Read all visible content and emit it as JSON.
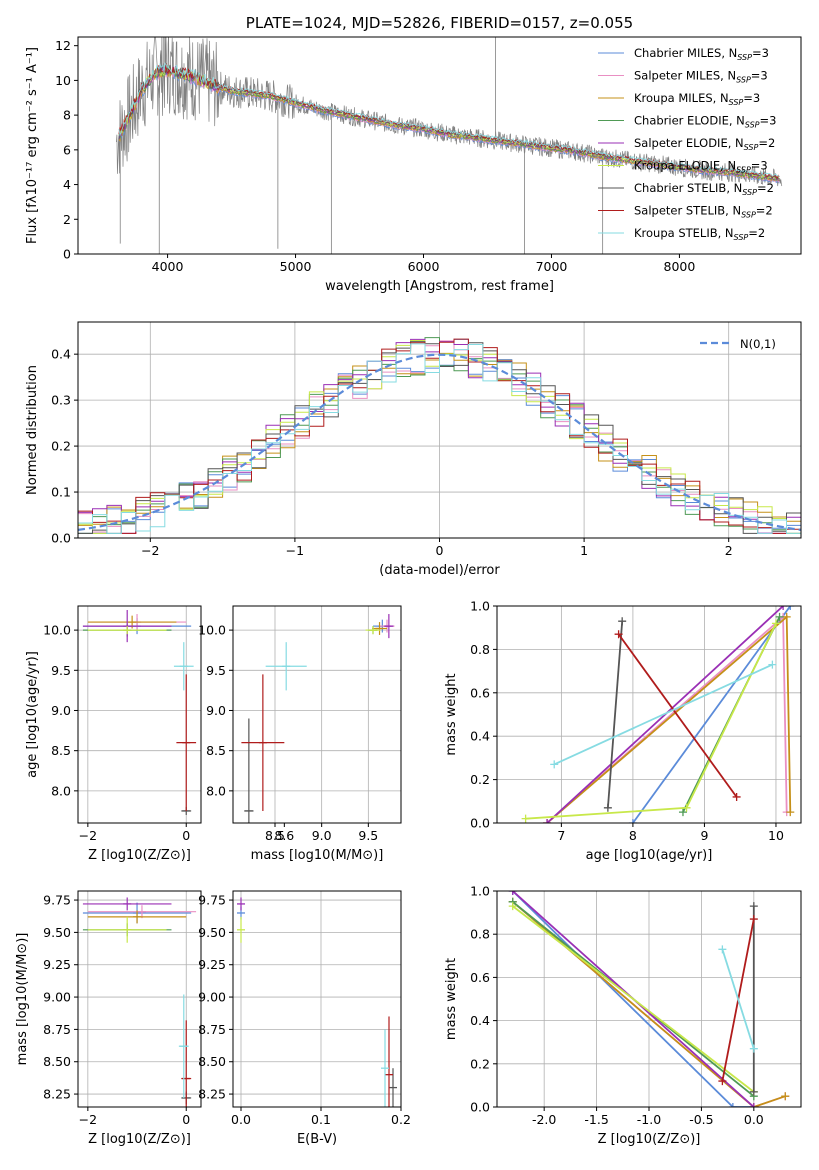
{
  "colors": {
    "Chabrier MILES": "#5b8bd9",
    "Salpeter MILES": "#e98fc3",
    "Kroupa MILES": "#c59018",
    "Chabrier ELODIE": "#4f9a55",
    "Salpeter ELODIE": "#9a2fb5",
    "Kroupa ELODIE": "#c8e84a",
    "Chabrier STELIB": "#555555",
    "Salpeter STELIB": "#b01c1c",
    "Kroupa STELIB": "#86dbe2",
    "spectrum": "#808080",
    "normal": "#5b8bd9"
  },
  "chart_data": [
    {
      "type": "line",
      "title": "PLATE=1024, MJD=52826, FIBERID=0157, z=0.055",
      "xlabel": "wavelength [Angstrom, rest frame]",
      "ylabel": "Flux [fλ10⁻¹⁷ erg cm⁻² s⁻¹ A⁻¹]",
      "xlim": [
        3300,
        8950
      ],
      "ylim": [
        0,
        12.5
      ],
      "xticks": [
        4000,
        5000,
        6000,
        7000,
        8000
      ],
      "yticks": [
        0,
        2,
        4,
        6,
        8,
        10,
        12
      ],
      "grid": false,
      "legend": "top-right",
      "observed_x": [
        3600,
        3700,
        3800,
        3900,
        4000,
        4100,
        4200,
        4300,
        4400,
        4500,
        4600,
        4700,
        4800,
        4900,
        5000,
        5200,
        5400,
        5600,
        5800,
        6000,
        6200,
        6400,
        6600,
        6800,
        7000,
        7200,
        7400,
        7600,
        7800,
        8000,
        8200,
        8400,
        8600,
        8800
      ],
      "observed_y": [
        6.5,
        7.9,
        9.5,
        10.4,
        10.6,
        10.4,
        10.2,
        9.9,
        9.6,
        9.4,
        9.3,
        9.2,
        9.1,
        8.9,
        8.7,
        8.3,
        8.0,
        7.7,
        7.4,
        7.2,
        6.9,
        6.7,
        6.5,
        6.3,
        6.1,
        5.9,
        5.6,
        5.4,
        5.2,
        5.0,
        4.8,
        4.7,
        4.5,
        4.3
      ],
      "series": [
        {
          "name": "Chabrier MILES, N_SSP=3"
        },
        {
          "name": "Salpeter MILES, N_SSP=3"
        },
        {
          "name": "Kroupa MILES, N_SSP=3"
        },
        {
          "name": "Chabrier ELODIE, N_SSP=3"
        },
        {
          "name": "Salpeter ELODIE, N_SSP=2"
        },
        {
          "name": "Kroupa ELODIE, N_SSP=3"
        },
        {
          "name": "Chabrier STELIB, N_SSP=2"
        },
        {
          "name": "Salpeter STELIB, N_SSP=2"
        },
        {
          "name": "Kroupa STELIB, N_SSP=2"
        }
      ]
    },
    {
      "type": "histogram",
      "xlabel": "(data-model)/error",
      "ylabel": "Normed distribution",
      "xlim": [
        -2.5,
        2.5
      ],
      "ylim": [
        0,
        0.47
      ],
      "xticks": [
        -2,
        -1,
        0,
        1,
        2
      ],
      "yticks": [
        0.0,
        0.1,
        0.2,
        0.3,
        0.4
      ],
      "grid": true,
      "legend": "top-right",
      "legend_label": "N(0,1)",
      "bin_width": 0.1
    },
    {
      "type": "scatter",
      "xlabel": "Z [log10(Z/Z⊙)]",
      "ylabel": "age  [log10(age/yr)]",
      "xlim": [
        -2.2,
        0.3
      ],
      "ylim": [
        7.6,
        10.3
      ],
      "xticks": [
        -2,
        0
      ],
      "yticks": [
        8.0,
        8.5,
        9.0,
        9.5,
        10.0
      ],
      "grid": true,
      "points": [
        {
          "series": "Chabrier MILES",
          "x": -1.0,
          "y": 10.05,
          "xerr": 1.1,
          "yerr": 0.1
        },
        {
          "series": "Salpeter MILES",
          "x": -1.0,
          "y": 10.1,
          "xerr": 1.0,
          "yerr": 0.1
        },
        {
          "series": "Kroupa MILES",
          "x": -1.1,
          "y": 10.1,
          "xerr": 0.9,
          "yerr": 0.08
        },
        {
          "series": "Chabrier ELODIE",
          "x": -1.2,
          "y": 10.0,
          "xerr": 0.9,
          "yerr": 0.08
        },
        {
          "series": "Salpeter ELODIE",
          "x": -1.2,
          "y": 10.05,
          "xerr": 0.9,
          "yerr": 0.2
        },
        {
          "series": "Kroupa ELODIE",
          "x": -1.2,
          "y": 10.0,
          "xerr": 0.8,
          "yerr": 0.05
        },
        {
          "series": "Chabrier STELIB",
          "x": 0.0,
          "y": 7.75,
          "xerr": 0.1,
          "yerr": 0.05
        },
        {
          "series": "Salpeter STELIB",
          "x": 0.0,
          "y": 8.6,
          "xerr": 0.2,
          "yerr": 0.85
        },
        {
          "series": "Kroupa STELIB",
          "x": -0.05,
          "y": 9.55,
          "xerr": 0.2,
          "yerr": 0.3
        }
      ]
    },
    {
      "type": "scatter",
      "xlabel": "mass [log10(M/M⊙)]",
      "ylabel": "",
      "xlim": [
        8.05,
        9.85
      ],
      "ylim": [
        7.6,
        10.3
      ],
      "xticks": [
        8.5,
        9.0,
        9.5
      ],
      "xtick_labels": [
        "8.5",
        "9.0",
        "9.5"
      ],
      "yticks": [
        8.0,
        8.5,
        9.0,
        9.5,
        10.0
      ],
      "grid": true,
      "extra_xtick": {
        "value": 8.6,
        "label": "8.6"
      },
      "points": [
        {
          "series": "Chabrier MILES",
          "x": 9.65,
          "y": 10.05,
          "xerr": 0.1,
          "yerr": 0.08
        },
        {
          "series": "Salpeter MILES",
          "x": 9.7,
          "y": 10.05,
          "xerr": 0.08,
          "yerr": 0.08
        },
        {
          "series": "Kroupa MILES",
          "x": 9.62,
          "y": 10.02,
          "xerr": 0.08,
          "yerr": 0.08
        },
        {
          "series": "Chabrier ELODIE",
          "x": 9.55,
          "y": 10.0,
          "xerr": 0.05,
          "yerr": 0.05
        },
        {
          "series": "Salpeter ELODIE",
          "x": 9.72,
          "y": 10.05,
          "xerr": 0.05,
          "yerr": 0.15
        },
        {
          "series": "Kroupa ELODIE",
          "x": 9.55,
          "y": 10.0,
          "xerr": 0.08,
          "yerr": 0.05
        },
        {
          "series": "Chabrier STELIB",
          "x": 8.22,
          "y": 7.75,
          "xerr": 0.05,
          "yerr": 1.15
        },
        {
          "series": "Salpeter STELIB",
          "x": 8.37,
          "y": 8.6,
          "xerr": 0.23,
          "yerr": 0.85
        },
        {
          "series": "Kroupa STELIB",
          "x": 8.62,
          "y": 9.55,
          "xerr": 0.22,
          "yerr": 0.3
        }
      ]
    },
    {
      "type": "line",
      "xlabel": "age  [log10(age/yr)]",
      "ylabel": "mass weight",
      "xlim": [
        6.1,
        10.35
      ],
      "ylim": [
        0,
        1.0
      ],
      "xticks": [
        7,
        8,
        9,
        10
      ],
      "yticks": [
        0.0,
        0.2,
        0.4,
        0.6,
        0.8,
        1.0
      ],
      "grid": true,
      "series": [
        {
          "name": "Chabrier MILES",
          "x": [
            8.0,
            10.2
          ],
          "y": [
            0.0,
            1.0
          ]
        },
        {
          "name": "Salpeter MILES",
          "x": [
            6.8,
            10.1,
            10.15
          ],
          "y": [
            0.0,
            0.95,
            0.05
          ]
        },
        {
          "name": "Kroupa MILES",
          "x": [
            6.8,
            10.15,
            10.2
          ],
          "y": [
            0.0,
            0.95,
            0.05
          ]
        },
        {
          "name": "Chabrier ELODIE",
          "x": [
            8.7,
            10.05
          ],
          "y": [
            0.05,
            0.95
          ]
        },
        {
          "name": "Salpeter ELODIE",
          "x": [
            6.8,
            10.1
          ],
          "y": [
            0.0,
            1.0
          ]
        },
        {
          "name": "Kroupa ELODIE",
          "x": [
            6.5,
            8.75,
            10.0
          ],
          "y": [
            0.02,
            0.07,
            0.92
          ]
        },
        {
          "name": "Chabrier STELIB",
          "x": [
            7.65,
            7.85
          ],
          "y": [
            0.07,
            0.93
          ]
        },
        {
          "name": "Salpeter STELIB",
          "x": [
            7.8,
            9.45
          ],
          "y": [
            0.87,
            0.12
          ]
        },
        {
          "name": "Kroupa STELIB",
          "x": [
            6.9,
            9.95
          ],
          "y": [
            0.27,
            0.73
          ]
        }
      ]
    },
    {
      "type": "scatter",
      "xlabel": "Z [log10(Z/Z⊙)]",
      "ylabel": "mass [log10(M/M⊙)]",
      "xlim": [
        -2.2,
        0.3
      ],
      "ylim": [
        8.15,
        9.82
      ],
      "xticks": [
        -2,
        0
      ],
      "yticks": [
        8.25,
        8.5,
        8.75,
        9.0,
        9.25,
        9.5,
        9.75
      ],
      "grid": true,
      "points": [
        {
          "series": "Chabrier MILES",
          "x": -1.0,
          "y": 9.65,
          "xerr": 1.1,
          "yerr": 0.08
        },
        {
          "series": "Salpeter MILES",
          "x": -0.9,
          "y": 9.66,
          "xerr": 1.1,
          "yerr": 0.05
        },
        {
          "series": "Kroupa MILES",
          "x": -1.0,
          "y": 9.62,
          "xerr": 1.0,
          "yerr": 0.05
        },
        {
          "series": "Chabrier ELODIE",
          "x": -1.2,
          "y": 9.52,
          "xerr": 0.9,
          "yerr": 0.05
        },
        {
          "series": "Salpeter ELODIE",
          "x": -1.2,
          "y": 9.72,
          "xerr": 0.9,
          "yerr": 0.05
        },
        {
          "series": "Kroupa ELODIE",
          "x": -1.2,
          "y": 9.52,
          "xerr": 0.8,
          "yerr": 0.1
        },
        {
          "series": "Chabrier STELIB",
          "x": 0.0,
          "y": 8.22,
          "xerr": 0.1,
          "yerr": 0.05
        },
        {
          "series": "Salpeter STELIB",
          "x": 0.0,
          "y": 8.37,
          "xerr": 0.1,
          "yerr": 0.45
        },
        {
          "series": "Kroupa STELIB",
          "x": -0.05,
          "y": 8.62,
          "xerr": 0.1,
          "yerr": 0.4
        }
      ]
    },
    {
      "type": "scatter",
      "xlabel": "E(B-V)",
      "ylabel": "",
      "xlim": [
        -0.01,
        0.2
      ],
      "ylim": [
        8.15,
        9.82
      ],
      "xticks": [
        0.0,
        0.1,
        0.2
      ],
      "yticks": [
        8.25,
        8.5,
        8.75,
        9.0,
        9.25,
        9.5,
        9.75
      ],
      "grid": true,
      "points": [
        {
          "series": "Chabrier MILES",
          "x": 0.0,
          "y": 9.65,
          "xerr": 0.0,
          "yerr": 0.05
        },
        {
          "series": "Salpeter ELODIE",
          "x": 0.0,
          "y": 9.72,
          "xerr": 0.0,
          "yerr": 0.05
        },
        {
          "series": "Kroupa ELODIE",
          "x": 0.0,
          "y": 9.52,
          "xerr": 0.0,
          "yerr": 0.1
        },
        {
          "series": "Chabrier STELIB",
          "x": 0.19,
          "y": 8.3,
          "xerr": 0.0,
          "yerr": 0.15
        },
        {
          "series": "Salpeter STELIB",
          "x": 0.185,
          "y": 8.4,
          "xerr": 0.0,
          "yerr": 0.45
        },
        {
          "series": "Kroupa STELIB",
          "x": 0.18,
          "y": 8.45,
          "xerr": 0.0,
          "yerr": 0.3
        }
      ]
    },
    {
      "type": "line",
      "xlabel": "Z [log10(Z/Z⊙)]",
      "ylabel": "mass weight",
      "xlim": [
        -2.45,
        0.45
      ],
      "ylim": [
        0,
        1.0
      ],
      "xticks": [
        -2.0,
        -1.5,
        -1.0,
        -0.5,
        0.0
      ],
      "yticks": [
        0.0,
        0.2,
        0.4,
        0.6,
        0.8,
        1.0
      ],
      "grid": true,
      "series": [
        {
          "name": "Chabrier MILES",
          "x": [
            -2.3,
            -0.2,
            0.0
          ],
          "y": [
            1.0,
            0.0,
            0.0
          ]
        },
        {
          "name": "Salpeter MILES",
          "x": [
            -2.3,
            0.0,
            0.3
          ],
          "y": [
            0.95,
            0.0,
            0.05
          ]
        },
        {
          "name": "Kroupa MILES",
          "x": [
            -2.3,
            0.0,
            0.3
          ],
          "y": [
            0.95,
            0.0,
            0.05
          ]
        },
        {
          "name": "Chabrier ELODIE",
          "x": [
            -2.3,
            0.0
          ],
          "y": [
            0.95,
            0.05
          ]
        },
        {
          "name": "Salpeter ELODIE",
          "x": [
            -2.3,
            0.0
          ],
          "y": [
            1.0,
            0.0
          ]
        },
        {
          "name": "Kroupa ELODIE",
          "x": [
            -2.3,
            0.0
          ],
          "y": [
            0.93,
            0.07
          ]
        },
        {
          "name": "Chabrier STELIB",
          "x": [
            0.0,
            0.0
          ],
          "y": [
            0.07,
            0.93
          ]
        },
        {
          "name": "Salpeter STELIB",
          "x": [
            -0.3,
            0.0
          ],
          "y": [
            0.12,
            0.87
          ]
        },
        {
          "name": "Kroupa STELIB",
          "x": [
            -0.3,
            0.0
          ],
          "y": [
            0.73,
            0.27
          ]
        }
      ]
    }
  ]
}
